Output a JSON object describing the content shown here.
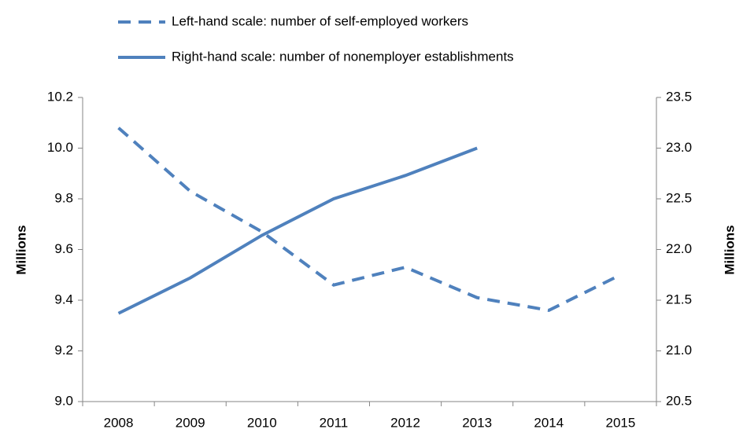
{
  "chart_data": {
    "type": "line",
    "categories": [
      "2008",
      "2009",
      "2010",
      "2011",
      "2012",
      "2013",
      "2014",
      "2015"
    ],
    "series": [
      {
        "name": "Left-hand scale: number of self-employed workers",
        "color": "#4f81bd",
        "dash": true,
        "axis": "y",
        "values": [
          10.08,
          9.83,
          9.67,
          9.46,
          9.53,
          9.41,
          9.36,
          9.5
        ]
      },
      {
        "name": "Right-hand scale: number of nonemployer establishments",
        "color": "#4f81bd",
        "dash": false,
        "axis": "y2",
        "values": [
          21.37,
          21.72,
          22.14,
          22.5,
          22.73,
          23.0,
          null,
          null
        ]
      }
    ],
    "ylabel": "Millions",
    "y2label": "Millions",
    "ylim": [
      9.0,
      10.2
    ],
    "yticks": [
      {
        "value": 9,
        "label": "9.0"
      },
      9.2,
      9.4,
      9.6,
      9.8,
      {
        "value": 10,
        "label": "10.0"
      },
      10.2
    ],
    "y2lim": [
      20.5,
      23.5
    ],
    "y2ticks": [
      20.5,
      {
        "value": 21,
        "label": "21.0"
      },
      21.5,
      {
        "value": 22,
        "label": "22.0"
      },
      22.5,
      {
        "value": 23,
        "label": "23.0"
      },
      23.5
    ],
    "grid": false,
    "legend": "top"
  }
}
